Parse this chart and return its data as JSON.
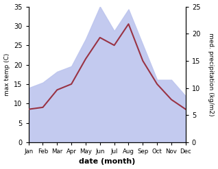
{
  "months": [
    "Jan",
    "Feb",
    "Mar",
    "Apr",
    "May",
    "Jun",
    "Jul",
    "Aug",
    "Sep",
    "Oct",
    "Nov",
    "Dec"
  ],
  "max_temp": [
    8.5,
    9.0,
    13.5,
    15.0,
    21.5,
    27.0,
    25.0,
    30.5,
    21.0,
    15.0,
    11.0,
    8.5
  ],
  "precipitation": [
    10.0,
    11.0,
    13.0,
    14.0,
    19.0,
    25.0,
    20.5,
    24.5,
    18.0,
    11.5,
    11.5,
    8.5
  ],
  "temp_color": "#993344",
  "precip_fill_color": "#bdc5ee",
  "temp_ylim": [
    0,
    35
  ],
  "precip_ylim": [
    0,
    25
  ],
  "temp_yticks": [
    0,
    5,
    10,
    15,
    20,
    25,
    30,
    35
  ],
  "precip_yticks": [
    0,
    5,
    10,
    15,
    20,
    25
  ],
  "xlabel": "date (month)",
  "ylabel_left": "max temp (C)",
  "ylabel_right": "med. precipitation (kg/m2)",
  "background_color": "#ffffff"
}
